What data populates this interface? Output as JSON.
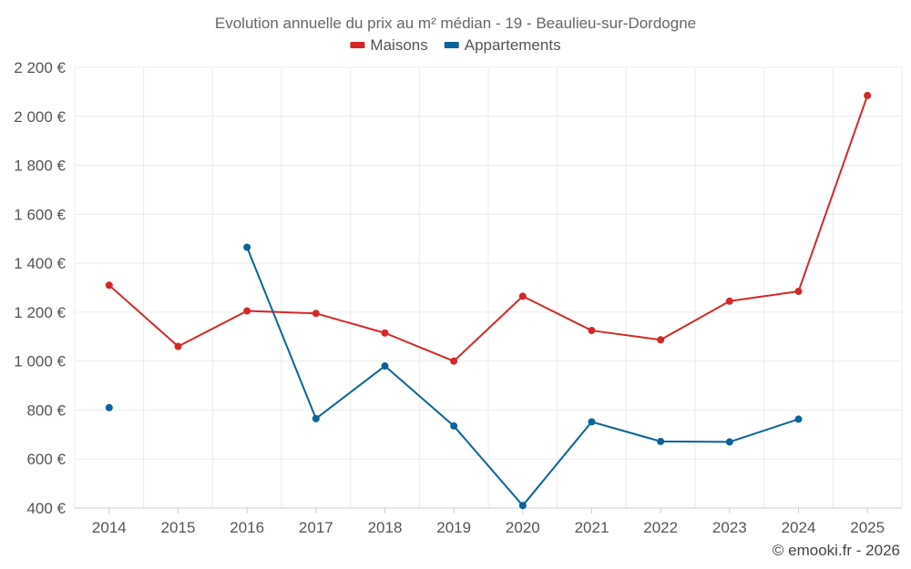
{
  "chart_data": {
    "type": "line",
    "title": "Evolution annuelle du prix au m² médian - 19 - Beaulieu-sur-Dordogne",
    "x": [
      "2014",
      "2015",
      "2016",
      "2017",
      "2018",
      "2019",
      "2020",
      "2021",
      "2022",
      "2023",
      "2024",
      "2025"
    ],
    "series": [
      {
        "name": "Maisons",
        "color": "#d62728",
        "values": [
          1310,
          1060,
          1205,
          1195,
          1115,
          1000,
          1265,
          1125,
          1087,
          1245,
          1285,
          2085
        ]
      },
      {
        "name": "Appartements",
        "color": "#0a6399",
        "values": [
          810,
          null,
          1465,
          765,
          980,
          735,
          410,
          752,
          672,
          670,
          763,
          null
        ]
      }
    ],
    "ylim": [
      400,
      2200
    ],
    "yticks": [
      400,
      600,
      800,
      1000,
      1200,
      1400,
      1600,
      1800,
      2000,
      2200
    ],
    "ytick_labels": [
      "400 €",
      "600 €",
      "800 €",
      "1 000 €",
      "1 200 €",
      "1 400 €",
      "1 600 €",
      "1 800 €",
      "2 000 €",
      "2 200 €"
    ],
    "legend_position": "top-center",
    "grid": true
  },
  "credit": "© emooki.fr - 2026"
}
